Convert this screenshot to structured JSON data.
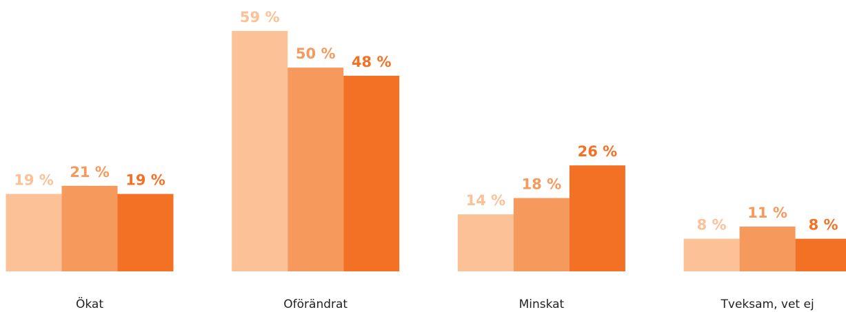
{
  "chart_data": {
    "type": "bar",
    "categories": [
      "Ökat",
      "Oförändrat",
      "Minskat",
      "Tveksam, vet ej"
    ],
    "series": [
      {
        "color": "#fcc197",
        "values": [
          19,
          59,
          14,
          8
        ],
        "value_labels": [
          "19 %",
          "59 %",
          "14 %",
          "8 %"
        ]
      },
      {
        "color": "#f6995c",
        "values": [
          21,
          50,
          18,
          11
        ],
        "value_labels": [
          "21 %",
          "50 %",
          "18 %",
          "11 %"
        ]
      },
      {
        "color": "#f37124",
        "values": [
          19,
          48,
          26,
          8
        ],
        "value_labels": [
          "19 %",
          "48 %",
          "26 %",
          "8 %"
        ]
      }
    ],
    "ylim": [
      0,
      60
    ]
  }
}
